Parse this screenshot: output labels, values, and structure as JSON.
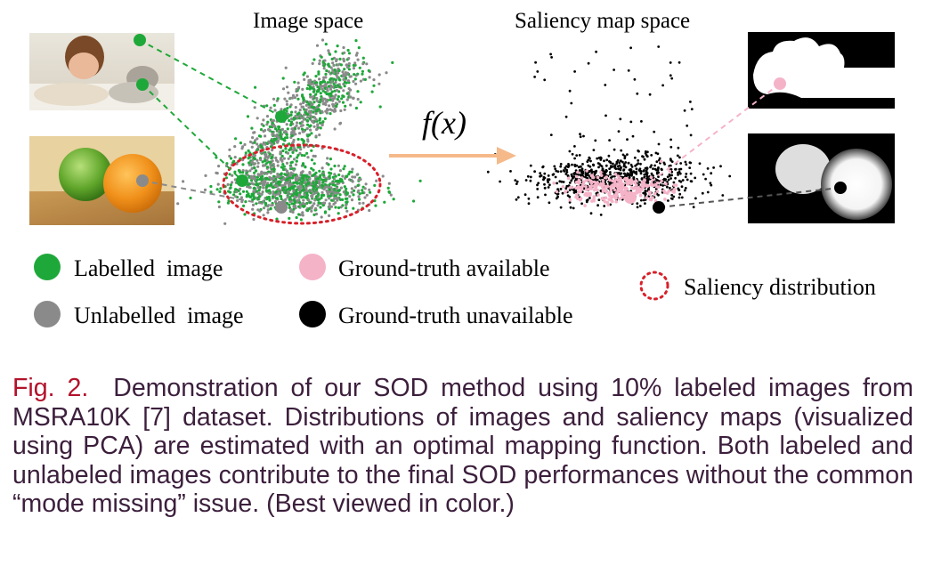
{
  "figure": {
    "image_space_title": "Image space",
    "saliency_space_title": "Saliency map space",
    "mapping_label": "f(x)",
    "legend": {
      "labelled": "Labelled  image",
      "unlabelled": "Unlabelled  image",
      "gt_available": "Ground-truth available",
      "gt_unavailable": "Ground-truth unavailable",
      "saliency_distribution": "Saliency distribution"
    },
    "colors": {
      "labelled": "#1fa83a",
      "unlabelled": "#8a8a8a",
      "gt_available": "#f5b3c8",
      "gt_unavailable": "#000000",
      "saliency_distribution": "#d8202a",
      "arrow": "#f5b98a"
    }
  },
  "caption": {
    "label": "Fig. 2.",
    "text": "Demonstration of our SOD method using 10% labeled images from MSRA10K [7] dataset. Distributions of images and saliency maps (visualized using PCA) are estimated with an optimal mapping function. Both labeled and unlabeled images contribute to the final SOD performances without the common “mode missing” issue. (Best viewed in color.)"
  }
}
